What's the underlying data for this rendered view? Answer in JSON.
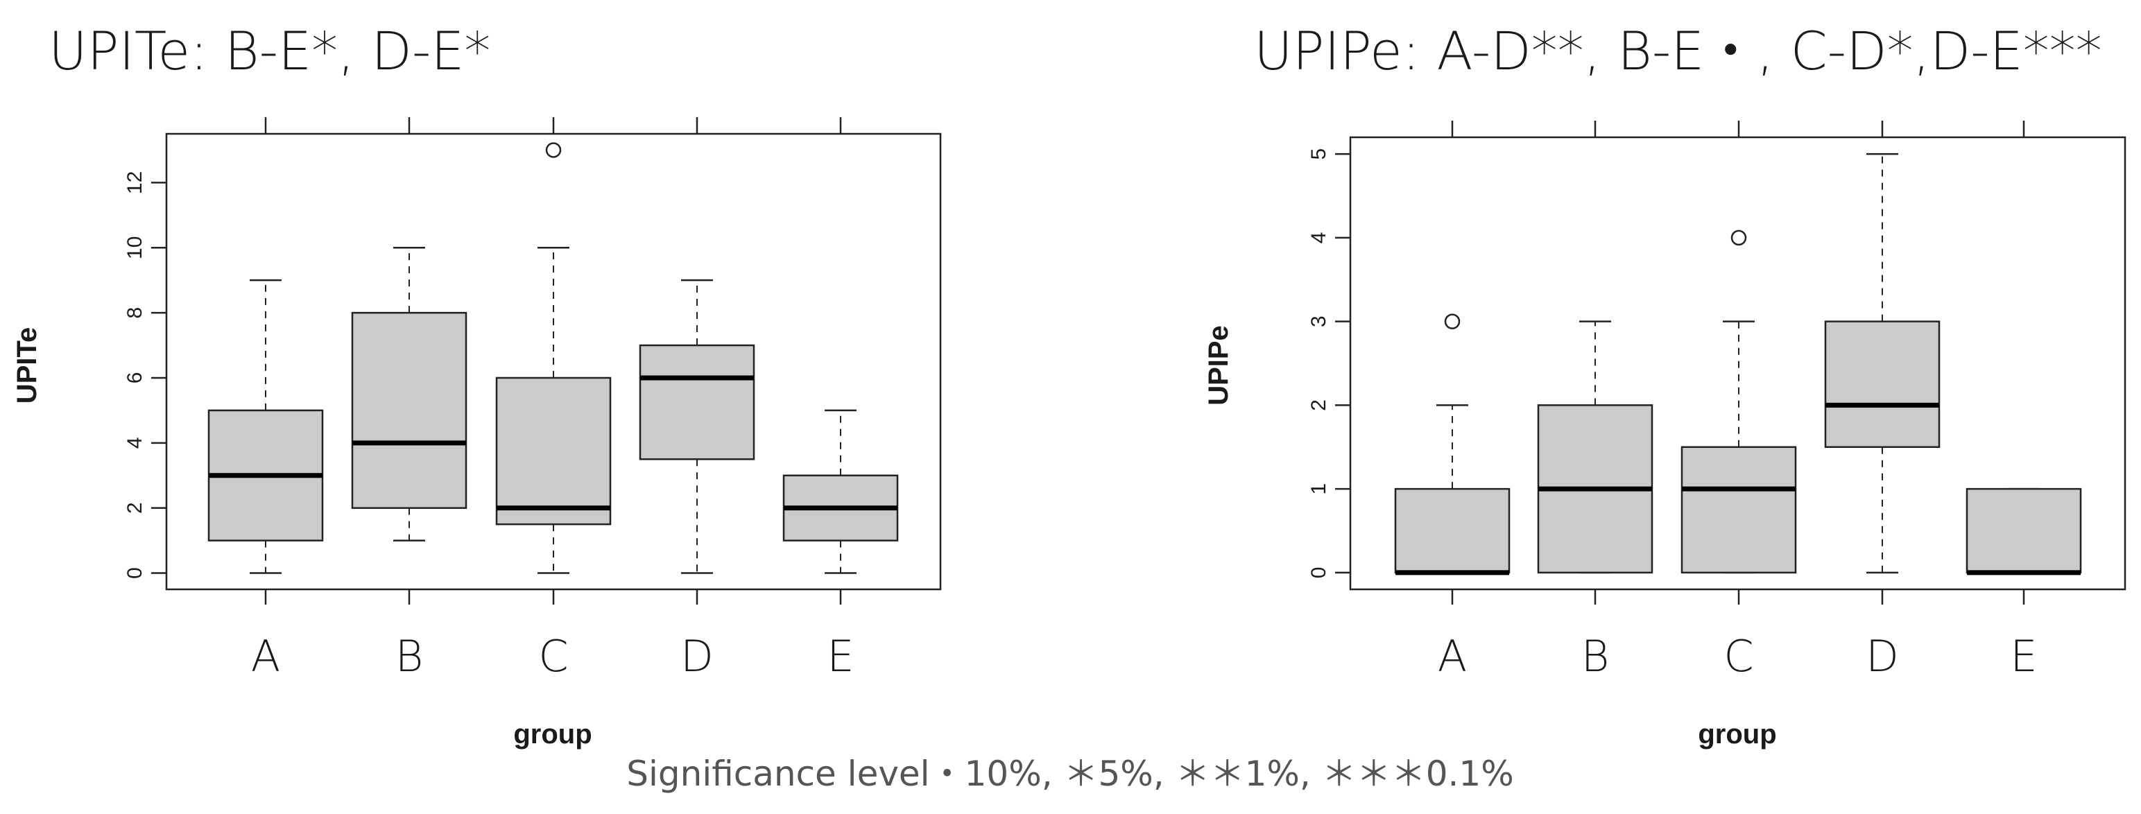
{
  "footer": "Significance level・10%, ＊5%, ＊＊1%, ＊＊＊0.1%",
  "chart_data": [
    {
      "type": "box",
      "title": "UPITe: B-E*, D-E*",
      "xlabel": "group",
      "ylabel": "UPITe",
      "ylim": [
        -0.5,
        13.5
      ],
      "yticks": [
        0,
        2,
        4,
        6,
        8,
        10,
        12
      ],
      "categories": [
        "A",
        "B",
        "C",
        "D",
        "E"
      ],
      "boxes": [
        {
          "category": "A",
          "whisker_low": 0,
          "q1": 1,
          "median": 3,
          "q3": 5,
          "whisker_high": 9,
          "outliers": []
        },
        {
          "category": "B",
          "whisker_low": 1,
          "q1": 2,
          "median": 4,
          "q3": 8,
          "whisker_high": 10,
          "outliers": []
        },
        {
          "category": "C",
          "whisker_low": 0,
          "q1": 1.5,
          "median": 2,
          "q3": 6,
          "whisker_high": 10,
          "outliers": [
            13
          ]
        },
        {
          "category": "D",
          "whisker_low": 0,
          "q1": 3.5,
          "median": 6,
          "q3": 7,
          "whisker_high": 9,
          "outliers": []
        },
        {
          "category": "E",
          "whisker_low": 0,
          "q1": 1,
          "median": 2,
          "q3": 3,
          "whisker_high": 5,
          "outliers": []
        }
      ],
      "box_color": "#cbcbcb"
    },
    {
      "type": "box",
      "title": "UPIPe: A-D**, B-E・, C-D*,D-E***",
      "xlabel": "group",
      "ylabel": "UPIPe",
      "ylim": [
        -0.2,
        5.2
      ],
      "yticks": [
        0,
        1,
        2,
        3,
        4,
        5
      ],
      "categories": [
        "A",
        "B",
        "C",
        "D",
        "E"
      ],
      "boxes": [
        {
          "category": "A",
          "whisker_low": 0,
          "q1": 0,
          "median": 0,
          "q3": 1,
          "whisker_high": 2,
          "outliers": [
            3
          ]
        },
        {
          "category": "B",
          "whisker_low": 0,
          "q1": 0,
          "median": 1,
          "q3": 2,
          "whisker_high": 3,
          "outliers": []
        },
        {
          "category": "C",
          "whisker_low": 0,
          "q1": 0,
          "median": 1,
          "q3": 1.5,
          "whisker_high": 3,
          "outliers": [
            4
          ]
        },
        {
          "category": "D",
          "whisker_low": 0,
          "q1": 1.5,
          "median": 2,
          "q3": 3,
          "whisker_high": 5,
          "outliers": []
        },
        {
          "category": "E",
          "whisker_low": 0,
          "q1": 0,
          "median": 0,
          "q3": 1,
          "whisker_high": 1,
          "outliers": []
        }
      ],
      "box_color": "#cbcbcb"
    }
  ]
}
